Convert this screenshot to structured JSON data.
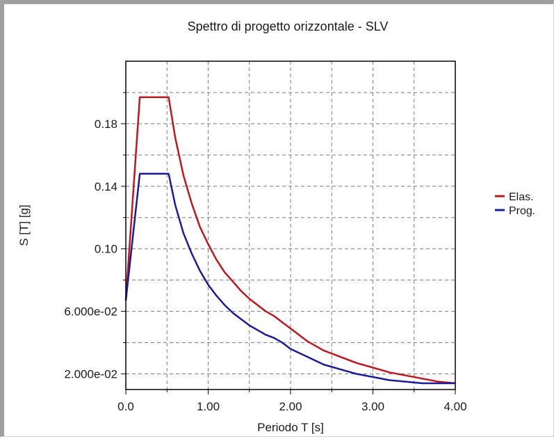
{
  "chart_data": {
    "type": "line",
    "title": "Spettro di progetto orizzontale - SLV",
    "xlabel": "Periodo T [s]",
    "ylabel": "S [T] [g]",
    "xlim": [
      0,
      4
    ],
    "ylim": [
      0.01,
      0.22
    ],
    "x_ticks": [
      0,
      1,
      2,
      3,
      4
    ],
    "x_tick_labels": [
      "0.0",
      "1.00",
      "2.00",
      "3.00",
      "4.00"
    ],
    "y_ticks": [
      0.02,
      0.06,
      0.1,
      0.14,
      0.18
    ],
    "y_tick_labels": [
      "2.000e-02",
      "6.000e-02",
      "0.10",
      "0.14",
      "0.18"
    ],
    "grid": true,
    "legend_position": "right",
    "series": [
      {
        "name": "Elas.",
        "color": "#c0161c",
        "x": [
          0,
          0.17,
          0.52,
          0.6,
          0.7,
          0.8,
          0.9,
          1.0,
          1.1,
          1.2,
          1.3,
          1.4,
          1.5,
          1.6,
          1.7,
          1.8,
          1.9,
          2.0,
          2.1,
          2.2,
          2.4,
          2.6,
          2.8,
          3.0,
          3.2,
          3.4,
          3.6,
          3.8,
          4.0
        ],
        "y": [
          0.067,
          0.197,
          0.197,
          0.171,
          0.147,
          0.129,
          0.114,
          0.103,
          0.093,
          0.085,
          0.079,
          0.073,
          0.068,
          0.064,
          0.06,
          0.057,
          0.053,
          0.049,
          0.045,
          0.041,
          0.035,
          0.031,
          0.027,
          0.024,
          0.021,
          0.019,
          0.017,
          0.015,
          0.014
        ]
      },
      {
        "name": "Prog.",
        "color": "#1a1a9c",
        "x": [
          0,
          0.17,
          0.52,
          0.6,
          0.7,
          0.8,
          0.9,
          1.0,
          1.1,
          1.2,
          1.3,
          1.4,
          1.5,
          1.6,
          1.7,
          1.8,
          1.9,
          2.0,
          2.2,
          2.4,
          2.6,
          2.8,
          3.0,
          3.2,
          3.4,
          3.6,
          3.8,
          4.0
        ],
        "y": [
          0.067,
          0.148,
          0.148,
          0.128,
          0.11,
          0.097,
          0.086,
          0.077,
          0.07,
          0.064,
          0.059,
          0.055,
          0.051,
          0.048,
          0.045,
          0.043,
          0.04,
          0.036,
          0.031,
          0.026,
          0.023,
          0.02,
          0.018,
          0.016,
          0.015,
          0.014,
          0.014,
          0.014
        ]
      }
    ]
  }
}
